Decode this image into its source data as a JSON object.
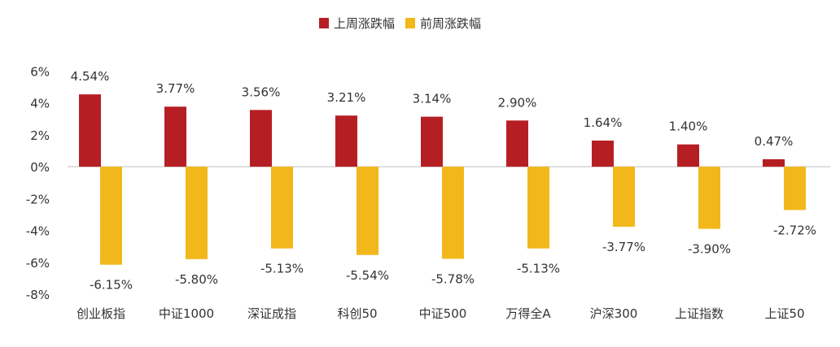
{
  "chart_data": {
    "type": "bar",
    "title": "",
    "xlabel": "",
    "ylabel": "",
    "categories": [
      "创业板指",
      "中证1000",
      "深证成指",
      "科创50",
      "中证500",
      "万得全A",
      "沪深300",
      "上证指数",
      "上证50"
    ],
    "series": [
      {
        "name": "上周涨跌幅",
        "color": "#B51F24",
        "values": [
          4.54,
          3.77,
          3.56,
          3.21,
          3.14,
          2.9,
          1.64,
          1.4,
          0.47
        ],
        "labels": [
          "4.54%",
          "3.77%",
          "3.56%",
          "3.21%",
          "3.14%",
          "2.90%",
          "1.64%",
          "1.40%",
          "0.47%"
        ]
      },
      {
        "name": "前周涨跌幅",
        "color": "#F2B81B",
        "values": [
          -6.15,
          -5.8,
          -5.13,
          -5.54,
          -5.78,
          -5.13,
          -3.77,
          -3.9,
          -2.72
        ],
        "labels": [
          "-6.15%",
          "-5.80%",
          "-5.13%",
          "-5.54%",
          "-5.78%",
          "-5.13%",
          "-3.77%",
          "-3.90%",
          "-2.72%"
        ]
      }
    ],
    "ylim": [
      -8,
      6
    ],
    "yticks": [
      6,
      4,
      2,
      0,
      -2,
      -4,
      -6,
      -8
    ],
    "ytick_labels": [
      "6%",
      "4%",
      "2%",
      "0%",
      "-2%",
      "-4%",
      "-6%",
      "-8%"
    ],
    "grid": false,
    "legend_position": "top-center"
  }
}
